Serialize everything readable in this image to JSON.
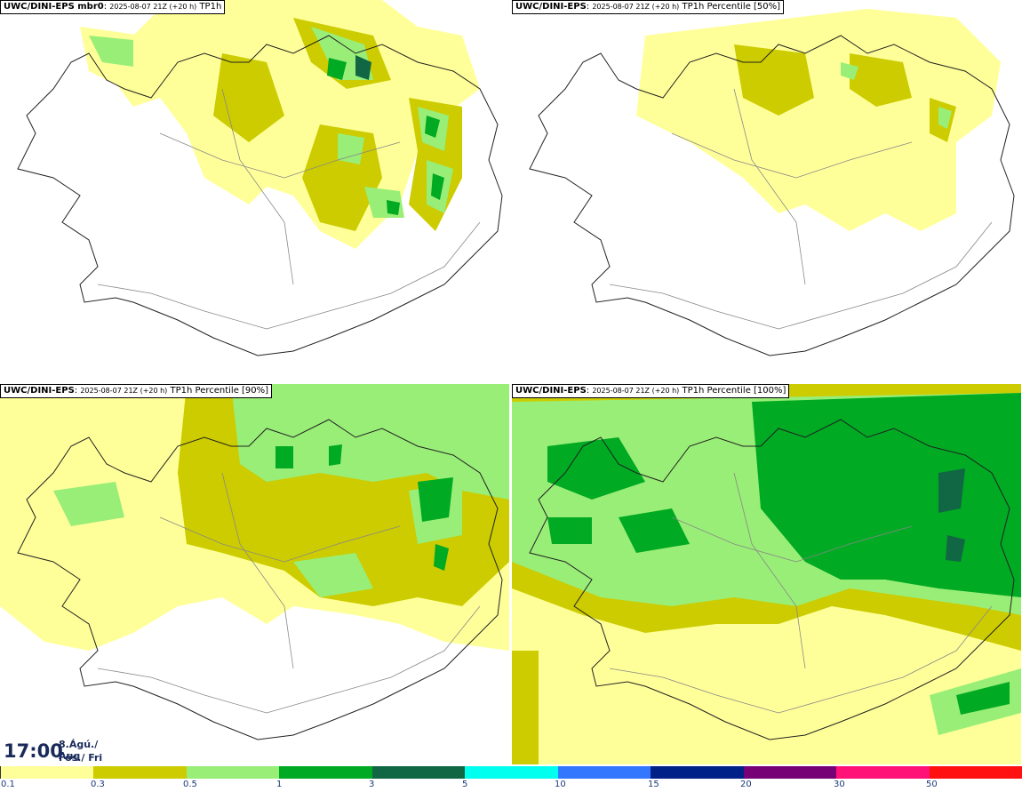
{
  "panels": [
    {
      "source": "UWC/DINI-EPS mbr0",
      "run": "2025-08-07 21Z (+20 h)",
      "field": "TP1h"
    },
    {
      "source": "UWC/DINI-EPS",
      "run": "2025-08-07 21Z (+20 h)",
      "field": "TP1h Percentile [50%]"
    },
    {
      "source": "UWC/DINI-EPS",
      "run": "2025-08-07 21Z (+20 h)",
      "field": "TP1h Percentile [90%]"
    },
    {
      "source": "UWC/DINI-EPS",
      "run": "2025-08-07 21Z (+20 h)",
      "field": "TP1h Percentile [100%]"
    }
  ],
  "valid_time": {
    "clock": "17:00",
    "date": "8.Ágú./ Aug",
    "weekday": "Fös./ Fri"
  },
  "colorbar": {
    "labels": [
      "0.1",
      "0.3",
      "0.5",
      "1",
      "3",
      "5",
      "10",
      "15",
      "20",
      "30",
      "50"
    ],
    "colors": [
      "#ffff99",
      "#cccc00",
      "#99ee77",
      "#00aa22",
      "#116644",
      "#00ffee",
      "#3377ff",
      "#002288",
      "#770077",
      "#ff1177",
      "#ff1111"
    ]
  },
  "colors": {
    "coast": "#222222",
    "roads": "#888888"
  }
}
